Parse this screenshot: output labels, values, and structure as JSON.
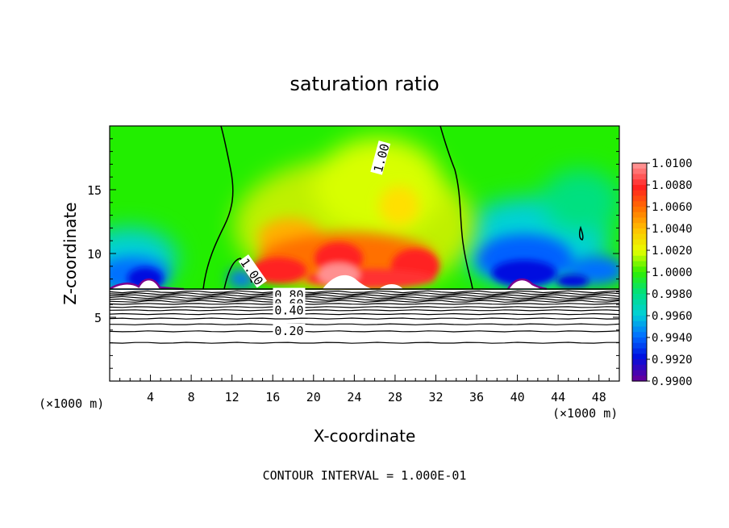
{
  "chart_data": {
    "type": "heatmap",
    "title": "saturation ratio",
    "xlabel": "X-coordinate",
    "ylabel": "Z-coordinate",
    "x_unit_label": "(×1000 m)",
    "x_unit_label_right": "(×1000 m)",
    "footer": "CONTOUR INTERVAL = 1.000E-01",
    "xlim": [
      0,
      50
    ],
    "ylim": [
      0,
      20
    ],
    "x_ticks": [
      4,
      8,
      12,
      16,
      20,
      24,
      28,
      32,
      36,
      40,
      44,
      48
    ],
    "x_tick_labels": [
      "4",
      "8",
      "12",
      "16",
      "20",
      "24",
      "28",
      "32",
      "36",
      "40",
      "44",
      "48"
    ],
    "y_ticks": [
      5,
      10,
      15
    ],
    "y_tick_labels": [
      "5",
      "10",
      "15"
    ],
    "colorbar": {
      "min": 0.99,
      "max": 1.01,
      "labels": [
        "1.0100",
        "1.0080",
        "1.0060",
        "1.0040",
        "1.0020",
        "1.0000",
        "0.9980",
        "0.9960",
        "0.9940",
        "0.9920",
        "0.9900"
      ],
      "colors": [
        "#ff9090",
        "#ff2020",
        "#ff7000",
        "#ffc000",
        "#e8ff00",
        "#30ee00",
        "#00e080",
        "#00d0d8",
        "#0070ff",
        "#0010e0",
        "#6000a0"
      ]
    },
    "cloud_base_z": 7.2,
    "contour_labels": [
      {
        "text": "1.00",
        "x": 26.6,
        "z": 17.5
      },
      {
        "text": "1.00",
        "x": 14.0,
        "z": 8.6
      },
      {
        "text": "0.80",
        "x": 17.6,
        "z": 6.8
      },
      {
        "text": "0.60",
        "x": 17.6,
        "z": 6.1
      },
      {
        "text": "0.40",
        "x": 17.6,
        "z": 5.6
      },
      {
        "text": "0.20",
        "x": 17.6,
        "z": 4.0
      }
    ],
    "subsaturated_contour_levels_z": [
      7.0,
      6.85,
      6.7,
      6.55,
      6.4,
      6.25,
      6.05,
      5.8,
      5.55,
      5.25,
      4.9,
      4.45,
      3.9,
      3.0
    ]
  }
}
